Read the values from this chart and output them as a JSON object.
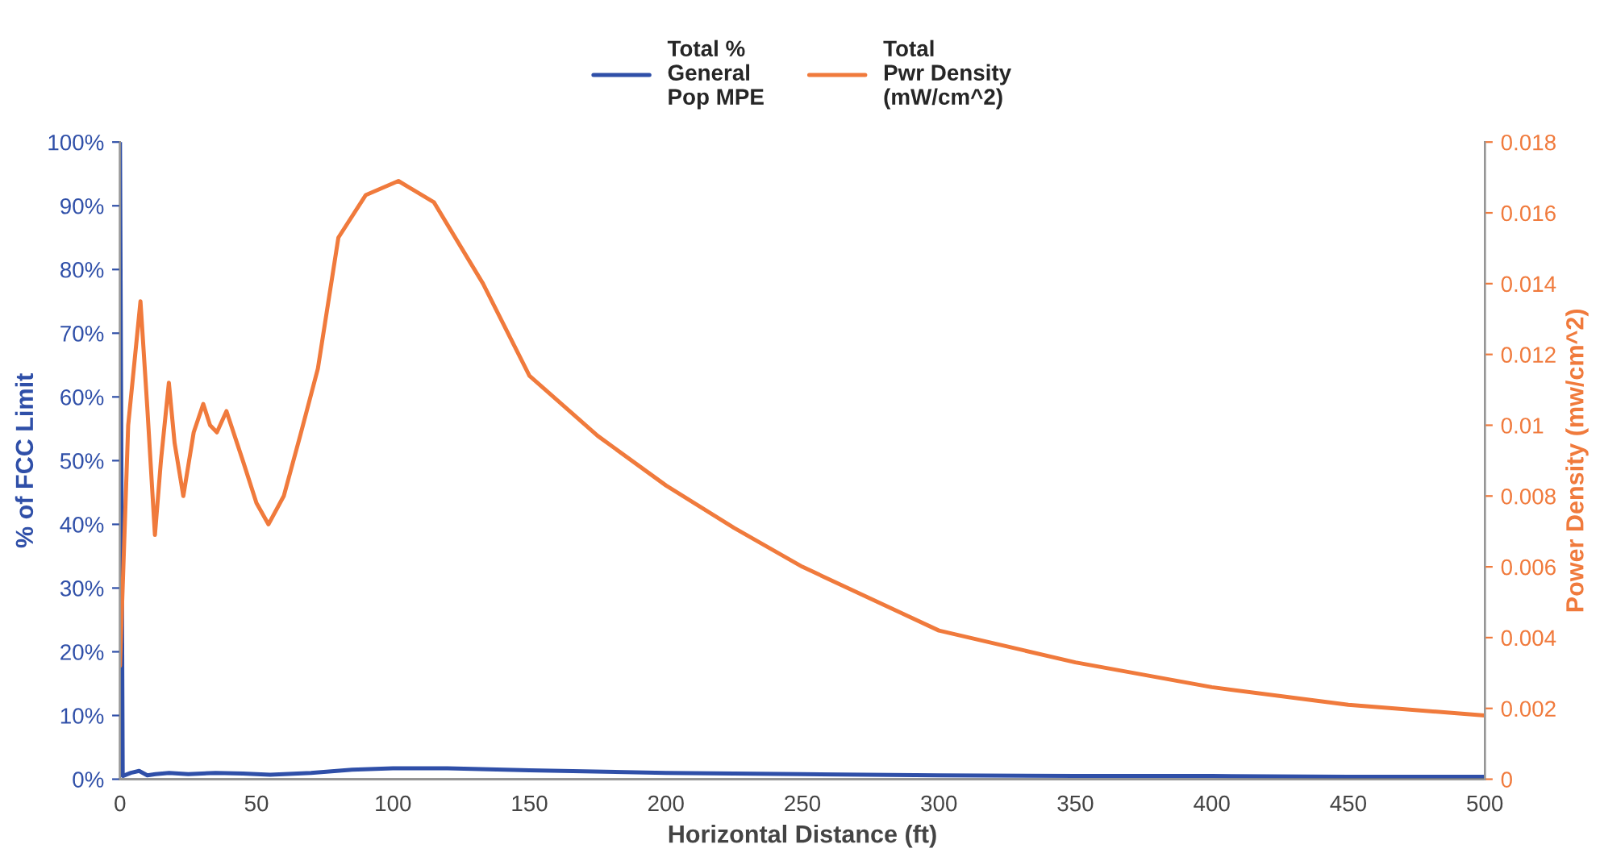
{
  "chart_data": {
    "type": "line",
    "xlabel": "Horizontal Distance (ft)",
    "ylabel": "% of FCC Limit",
    "y2label": "Power Density (mw/cm^2)",
    "xlim": [
      0,
      500
    ],
    "xticks": [
      0,
      50,
      100,
      150,
      200,
      250,
      300,
      350,
      400,
      450,
      500
    ],
    "ylim": [
      0,
      100
    ],
    "yticks": [
      {
        "value": 0,
        "label": "0%"
      },
      {
        "value": 10,
        "label": "10%"
      },
      {
        "value": 20,
        "label": "20%"
      },
      {
        "value": 30,
        "label": "30%"
      },
      {
        "value": 40,
        "label": "40%"
      },
      {
        "value": 50,
        "label": "50%"
      },
      {
        "value": 60,
        "label": "60%"
      },
      {
        "value": 70,
        "label": "70%"
      },
      {
        "value": 80,
        "label": "80%"
      },
      {
        "value": 90,
        "label": "90%"
      },
      {
        "value": 100,
        "label": "100%"
      }
    ],
    "y2lim": [
      0,
      0.018
    ],
    "y2ticks": [
      0,
      0.002,
      0.004,
      0.006,
      0.008,
      0.01,
      0.012,
      0.014,
      0.016,
      0.018
    ],
    "legend": "top",
    "grid": false,
    "series": [
      {
        "name": "Total %\nGeneral\nPop MPE",
        "color": "#2f4fa8",
        "x": [
          0,
          1,
          4,
          7,
          10,
          13,
          18,
          25,
          35,
          45,
          55,
          70,
          85,
          100,
          120,
          150,
          200,
          250,
          300,
          350,
          400,
          450,
          500
        ],
        "values": [
          100,
          0.5,
          1.0,
          1.3,
          0.6,
          0.8,
          1.0,
          0.8,
          1.0,
          0.9,
          0.7,
          1.0,
          1.5,
          1.7,
          1.7,
          1.4,
          1.0,
          0.8,
          0.6,
          0.5,
          0.5,
          0.4,
          0.4
        ]
      },
      {
        "name": "Total\nPwr Density\n(mW/cm^2)",
        "color": "#f07a3c",
        "axis": "y2",
        "x": [
          0,
          3,
          7.5,
          10,
          12.8,
          15,
          17.9,
          20,
          23.2,
          27,
          30.5,
          33,
          35.5,
          39,
          45,
          50,
          54.4,
          60,
          66,
          72.5,
          80,
          90,
          102,
          115,
          133,
          150,
          175,
          200,
          225,
          250,
          300,
          350,
          400,
          450,
          500
        ],
        "values": [
          0.0032,
          0.01,
          0.0135,
          0.0105,
          0.0069,
          0.009,
          0.0112,
          0.0095,
          0.008,
          0.0098,
          0.0106,
          0.01,
          0.0098,
          0.0104,
          0.009,
          0.0078,
          0.0072,
          0.008,
          0.0097,
          0.0116,
          0.0153,
          0.0165,
          0.0169,
          0.0163,
          0.014,
          0.0114,
          0.0097,
          0.0083,
          0.0071,
          0.006,
          0.0042,
          0.0033,
          0.0026,
          0.0021,
          0.0018
        ]
      }
    ]
  }
}
